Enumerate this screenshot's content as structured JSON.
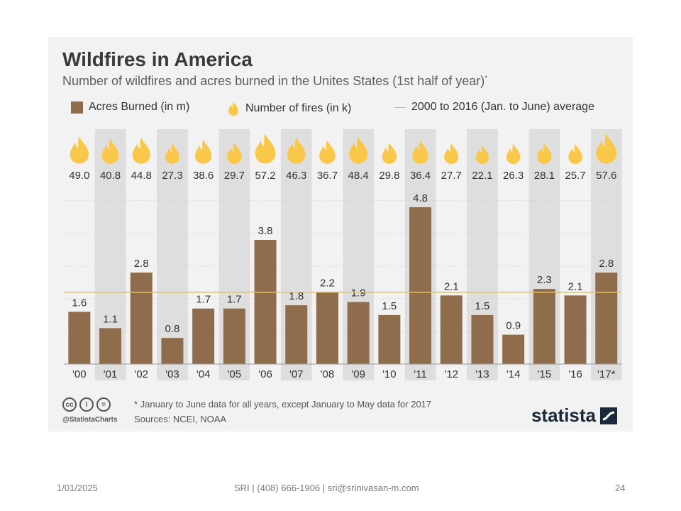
{
  "chart_data": {
    "type": "bar",
    "title": "Wildfires in America",
    "subtitle": "Number of wildfires and acres burned in the Unites States (1st half of year)",
    "subtitle_mark": "*",
    "legend": {
      "bars": "Acres Burned (in m)",
      "fires": "Number of fires (in k)",
      "average": "2000 to 2016 (Jan. to June) average"
    },
    "categories": [
      "'00",
      "'01",
      "'02",
      "'03",
      "'04",
      "'05",
      "'06",
      "'07",
      "'08",
      "'09",
      "'10",
      "'11",
      "'12",
      "'13",
      "'14",
      "'15",
      "'16",
      "'17*"
    ],
    "series": [
      {
        "name": "Acres Burned (in m)",
        "values": [
          1.6,
          1.1,
          2.8,
          0.8,
          1.7,
          1.7,
          3.8,
          1.8,
          2.2,
          1.9,
          1.5,
          4.8,
          2.1,
          1.5,
          0.9,
          2.3,
          2.1,
          2.8
        ]
      },
      {
        "name": "Number of fires (in k)",
        "values": [
          49.0,
          40.8,
          44.8,
          27.3,
          38.6,
          29.7,
          57.2,
          46.3,
          36.7,
          48.4,
          29.8,
          36.4,
          27.7,
          22.1,
          26.3,
          28.1,
          25.7,
          57.6
        ]
      }
    ],
    "average_line": 2.2,
    "ylim": [
      0,
      5
    ],
    "grid": true,
    "legend_position": "top",
    "colors": {
      "bar": "#8e6c4c",
      "flame": "#f9c84b",
      "average": "#e8c24d",
      "stripe": "#dedede",
      "grid": "#cfcfcf"
    }
  },
  "footnote": "* January to June data for all years, except January to May data for 2017",
  "sources": "Sources: NCEI, NOAA",
  "cc_icons": [
    "cc-icon",
    "by-icon",
    "nd-icon"
  ],
  "handle": "@StatistaCharts",
  "brand": "statista",
  "slide_footer": {
    "date": "1/01/2025",
    "contact": "SRI | (408) 666-1906 | sri@srinivasan-m.com",
    "page": "24"
  }
}
